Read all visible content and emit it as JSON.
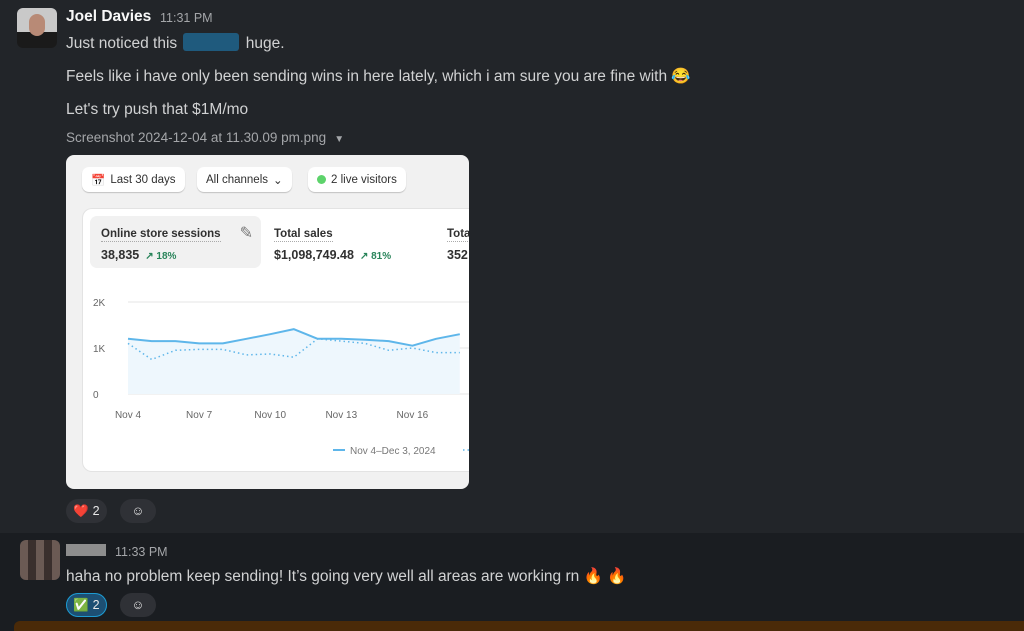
{
  "messages": [
    {
      "author": "Joel Davies",
      "time": "11:31 PM",
      "lines": [
        "Just noticed this",
        "huge.",
        "Feels like i have only been sending wins in here lately, which i am sure you are fine with 😂",
        "Let's try push that $1M/mo"
      ],
      "attachment": {
        "filename": "Screenshot 2024-12-04 at 11.30.09 pm.png"
      },
      "reactions": [
        {
          "emoji": "❤️",
          "count": "2"
        }
      ]
    },
    {
      "author": "",
      "time": "11:33 PM",
      "text": "haha no problem keep sending! It’s going very well all areas are working rn 🔥 🔥",
      "reactions": [
        {
          "emoji": "✅",
          "count": "2"
        }
      ]
    }
  ],
  "screenshot": {
    "filters": {
      "date": "Last 30 days",
      "channels": "All channels",
      "live": "2 live visitors"
    },
    "metrics": [
      {
        "label": "Online store sessions",
        "value": "38,835",
        "change": "↗ 18%"
      },
      {
        "label": "Total sales",
        "value": "$1,098,749.48",
        "change": "↗ 81%"
      },
      {
        "label": "Tota",
        "value": "352"
      }
    ],
    "legend": "Nov 4–Dec 3, 2024",
    "colors": {
      "series": "#5eb6ea",
      "live": "#5dd36b"
    }
  },
  "chart_data": {
    "type": "line",
    "x": [
      "Nov 4",
      "Nov 5",
      "Nov 6",
      "Nov 7",
      "Nov 8",
      "Nov 9",
      "Nov 10",
      "Nov 11",
      "Nov 12",
      "Nov 13",
      "Nov 14",
      "Nov 15",
      "Nov 16",
      "Nov 17",
      "Nov 18"
    ],
    "yticks": [
      "0",
      "1K",
      "2K"
    ],
    "xticks": [
      "Nov 4",
      "Nov 7",
      "Nov 10",
      "Nov 13",
      "Nov 16"
    ],
    "ylim": [
      0,
      2000
    ],
    "series": [
      {
        "name": "Nov 4–Dec 3, 2024",
        "style": "solid",
        "values": [
          1200,
          1150,
          1150,
          1100,
          1100,
          1200,
          1300,
          1410,
          1200,
          1200,
          1180,
          1150,
          1050,
          1200,
          1300
        ]
      },
      {
        "style": "dotted",
        "values": [
          1100,
          750,
          950,
          970,
          970,
          850,
          870,
          800,
          1200,
          1150,
          1100,
          950,
          1000,
          900,
          900
        ]
      }
    ]
  }
}
